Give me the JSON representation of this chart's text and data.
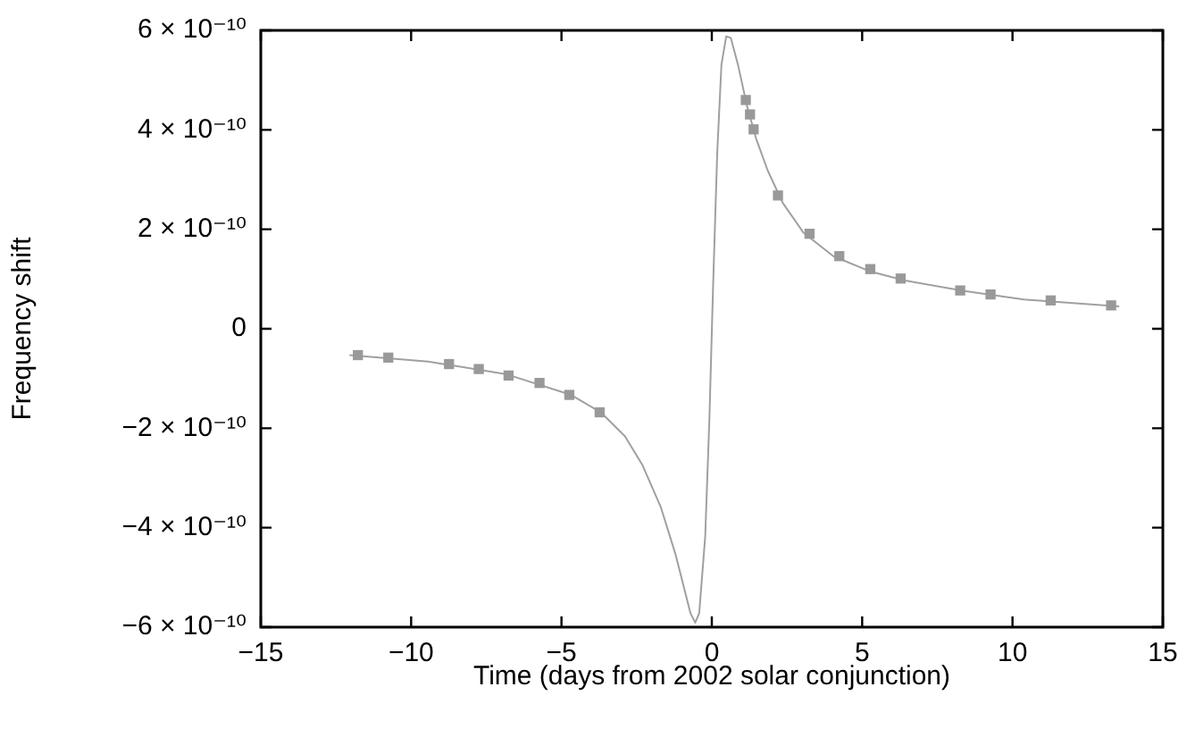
{
  "chart_data": {
    "type": "line",
    "xlabel": "Time (days from 2002 solar conjunction)",
    "ylabel": "Frequency shift",
    "xlim": [
      -15,
      15
    ],
    "xticks": [
      -15,
      -10,
      -5,
      0,
      5,
      10,
      15
    ],
    "ylim": [
      -6e-10,
      6e-10
    ],
    "yticks": [
      {
        "value": -6e-10,
        "label": "−6 × 10⁻¹⁰"
      },
      {
        "value": -4e-10,
        "label": "−4 × 10⁻¹⁰"
      },
      {
        "value": -2e-10,
        "label": "−2 × 10⁻¹⁰"
      },
      {
        "value": 0,
        "label": "0"
      },
      {
        "value": 2e-10,
        "label": "2 × 10⁻¹⁰"
      },
      {
        "value": 4e-10,
        "label": "4 × 10⁻¹⁰"
      },
      {
        "value": 6e-10,
        "label": "6 × 10⁻¹⁰"
      }
    ],
    "series": [
      {
        "color": "#a0a0a0",
        "marker": "none",
        "line_style": "solid",
        "x": [
          -12.05,
          -9.43,
          -6.86,
          -4.68,
          -3.69,
          -2.89,
          -2.3,
          -1.7,
          -1.21,
          -0.91,
          -0.71,
          -0.55,
          -0.42,
          -0.22,
          -0.08,
          0.04,
          0.18,
          0.32,
          0.48,
          0.63,
          0.87,
          1.17,
          1.47,
          1.86,
          2.36,
          3.05,
          4.04,
          5.23,
          6.42,
          8.4,
          10.38,
          13.55
        ],
        "values": [
          -5.3e-11,
          -6.6e-11,
          -9.1e-11,
          -1.33e-10,
          -1.68e-10,
          -2.16e-10,
          -2.75e-10,
          -3.58e-10,
          -4.53e-10,
          -5.24e-10,
          -5.72e-10,
          -5.91e-10,
          -5.72e-10,
          -4.18e-10,
          -1.8e-10,
          8.1e-11,
          3.54e-10,
          5.31e-10,
          5.88e-10,
          5.85e-10,
          5.31e-10,
          4.48e-10,
          3.83e-10,
          3.18e-10,
          2.53e-10,
          1.93e-10,
          1.46e-10,
          1.16e-10,
          9.7e-11,
          7.6e-11,
          5.9e-11,
          4.5e-11
        ]
      },
      {
        "type": "scatter",
        "color": "#999999",
        "marker": "square",
        "x": [
          -11.77,
          -10.76,
          -8.74,
          -7.75,
          -6.76,
          -5.73,
          -4.74,
          -3.73,
          1.13,
          1.27,
          1.39,
          2.2,
          3.25,
          4.24,
          5.27,
          6.28,
          8.26,
          9.27,
          11.27,
          13.28
        ],
        "values": [
          -5.3e-11,
          -5.8e-11,
          -7.1e-11,
          -8.1e-11,
          -9.4e-11,
          -1.09e-10,
          -1.33e-10,
          -1.68e-10,
          4.6e-10,
          4.31e-10,
          4.01e-10,
          2.68e-10,
          1.91e-10,
          1.46e-10,
          1.2e-10,
          1.01e-10,
          7.7e-11,
          6.9e-11,
          5.7e-11,
          4.7e-11
        ]
      }
    ]
  }
}
